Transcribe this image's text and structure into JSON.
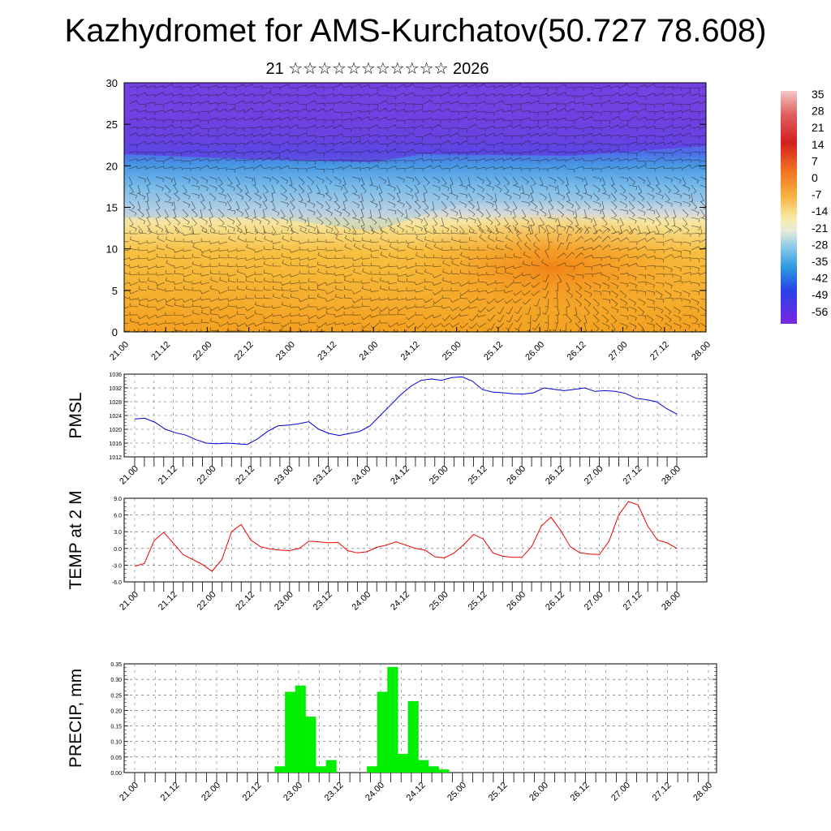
{
  "title": "Kazhydromet for AMS-Kurchatov(50.727 78.608)",
  "subtitle": "21 ☆☆☆☆☆☆☆☆☆☆☆ 2026",
  "colors": {
    "cross_section": [
      "#ffffff",
      "#e8a0a0",
      "#d42020",
      "#f07020",
      "#f7a040",
      "#f8d070",
      "#e8e8d0",
      "#80c0e8",
      "#2090e0",
      "#2040e8",
      "#6020e0",
      "#8030d0"
    ],
    "pmsl": "#0000dd",
    "temp": "#ee0000",
    "precip": "#00ee00"
  },
  "time_labels": [
    "21.00",
    "21.12",
    "22.00",
    "22.12",
    "23.00",
    "23.12",
    "24.00",
    "24.12",
    "25.00",
    "25.12",
    "26.00",
    "26.12",
    "27.00",
    "27.12",
    "28.00"
  ],
  "colorbar": {
    "labels": [
      "35",
      "28",
      "21",
      "14",
      "7",
      "0",
      "-7",
      "-14",
      "-21",
      "-28",
      "-35",
      "-42",
      "-49",
      "-56"
    ]
  },
  "chart_data": [
    {
      "id": "cross-section",
      "type": "heatmap",
      "title": "",
      "ylabel": "",
      "ylim": [
        0,
        30
      ],
      "yticks": [
        "0",
        "5",
        "10",
        "15",
        "20",
        "25",
        "30"
      ],
      "xlabel": "",
      "description": "Temperature cross-section with wind barbs, colored by colorbar scale"
    },
    {
      "id": "pmsl",
      "type": "line",
      "ylabel": "PMSL",
      "ylim": [
        1012,
        1036
      ],
      "yticks": [
        "1012",
        "1016",
        "1020",
        "1024",
        "1028",
        "1032",
        "1036"
      ],
      "series": [
        {
          "name": "PMSL",
          "values": [
            1023.0,
            1023.2,
            1022.0,
            1020.0,
            1019.0,
            1018.3,
            1017.0,
            1016.0,
            1015.8,
            1016.0,
            1015.8,
            1015.6,
            1017.2,
            1019.4,
            1021.0,
            1021.2,
            1021.6,
            1022.2,
            1020.0,
            1018.8,
            1018.2,
            1018.8,
            1019.4,
            1021.0,
            1024.0,
            1027.0,
            1030.0,
            1032.5,
            1034.2,
            1034.6,
            1034.2,
            1035.0,
            1035.2,
            1034.0,
            1031.5,
            1030.8,
            1030.6,
            1030.3,
            1030.2,
            1030.6,
            1032.0,
            1031.6,
            1031.2,
            1031.6,
            1032.0,
            1031.0,
            1031.2,
            1031.0,
            1030.4,
            1029.0,
            1028.6,
            1028.0,
            1026.0,
            1024.4
          ]
        }
      ]
    },
    {
      "id": "temp2m",
      "type": "line",
      "ylabel": "TEMP at 2 M",
      "ylim": [
        -6,
        9
      ],
      "yticks": [
        "-6.0",
        "-3.0",
        "0.0",
        "3.0",
        "6.0",
        "9.0"
      ],
      "series": [
        {
          "name": "TEMP at 2 M",
          "values": [
            -3.2,
            -2.7,
            1.4,
            2.9,
            0.9,
            -1.1,
            -2.0,
            -2.9,
            -4.1,
            -2.0,
            3.0,
            4.3,
            1.5,
            0.3,
            -0.1,
            -0.3,
            -0.4,
            0.0,
            1.3,
            1.2,
            1.0,
            1.1,
            -0.4,
            -0.8,
            -0.6,
            0.2,
            0.6,
            1.2,
            0.6,
            0.0,
            -0.3,
            -1.5,
            -1.7,
            -0.8,
            0.7,
            2.5,
            1.7,
            -0.8,
            -1.4,
            -1.6,
            -1.6,
            0.3,
            4.0,
            5.6,
            3.2,
            0.3,
            -0.8,
            -1.0,
            -1.1,
            1.3,
            6.0,
            8.4,
            7.8,
            4.0,
            1.5,
            1.0,
            0.0
          ]
        }
      ]
    },
    {
      "id": "precip",
      "type": "bar",
      "ylabel": "PRECIP, mm",
      "ylim": [
        0,
        0.35
      ],
      "yticks": [
        "0.00",
        "0.05",
        "0.10",
        "0.15",
        "0.20",
        "0.25",
        "0.30",
        "0.35"
      ],
      "bars": [
        {
          "step": 14,
          "value": 0.02
        },
        {
          "step": 15,
          "value": 0.26
        },
        {
          "step": 16,
          "value": 0.28
        },
        {
          "step": 17,
          "value": 0.18
        },
        {
          "step": 18,
          "value": 0.02
        },
        {
          "step": 19,
          "value": 0.04
        },
        {
          "step": 23,
          "value": 0.02
        },
        {
          "step": 24,
          "value": 0.26
        },
        {
          "step": 25,
          "value": 0.34
        },
        {
          "step": 26,
          "value": 0.06
        },
        {
          "step": 27,
          "value": 0.23
        },
        {
          "step": 28,
          "value": 0.04
        },
        {
          "step": 29,
          "value": 0.02
        },
        {
          "step": 30,
          "value": 0.01
        }
      ]
    }
  ]
}
